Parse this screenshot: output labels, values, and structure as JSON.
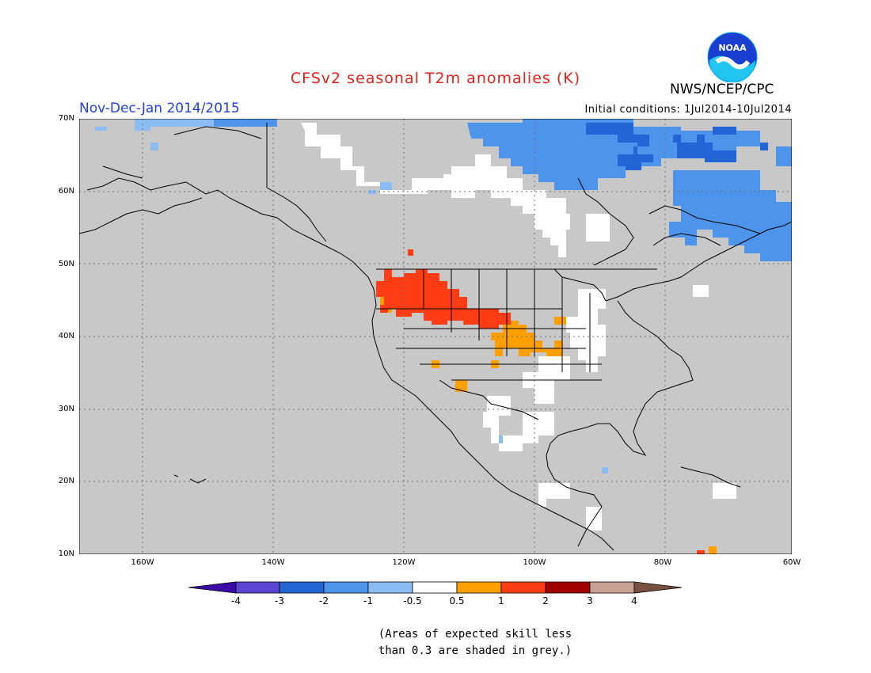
{
  "header": {
    "title": "CFSv2 seasonal T2m anomalies (K)",
    "period": "Nov-Dec-Jan 2014/2015",
    "initial_conditions": "Initial conditions: 1Jul2014-10Jul2014",
    "agency": "NWS/NCEP/CPC",
    "logo_text": "NOAA"
  },
  "map": {
    "lat_labels": [
      "70N",
      "60N",
      "50N",
      "40N",
      "30N",
      "20N",
      "10N"
    ],
    "lon_labels": [
      "160W",
      "140W",
      "120W",
      "100W",
      "80W",
      "60W"
    ],
    "grey_color": "#c8c8c8"
  },
  "colorbar": {
    "labels": [
      "-4",
      "-3",
      "-2",
      "-1",
      "-0.5",
      "0.5",
      "1",
      "2",
      "3",
      "4"
    ],
    "colors": [
      "#3b0aa8",
      "#5a46d2",
      "#2266d6",
      "#4d94ec",
      "#8cbcf4",
      "#ffffff",
      "#ffa000",
      "#ff3c14",
      "#a00000",
      "#c8a094",
      "#785040"
    ]
  },
  "note": {
    "line1": "(Areas of expected skill less",
    "line2": "than 0.3 are shaded in grey.)"
  }
}
